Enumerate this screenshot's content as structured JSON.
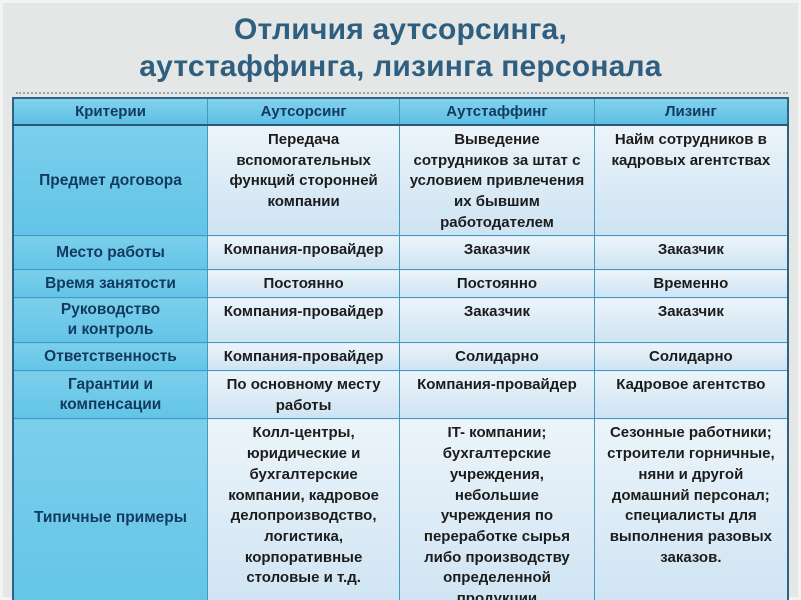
{
  "title": {
    "line1": "Отличия аутсорсинга,",
    "line2": "аутстаффинга, лизинга персонала"
  },
  "table": {
    "headers": [
      "Критерии",
      "Аутсорсинг",
      "Аутстаффинг",
      "Лизинг"
    ],
    "rows": [
      {
        "criterion": "Предмет договора",
        "outsourcing": "Передача вспомогательных функций сторонней компании",
        "outstaffing": "Выведение сотрудников за штат с условием привлечения их бывшим работодателем",
        "leasing": "Найм сотрудников в кадровых агентствах"
      },
      {
        "criterion": "Место работы",
        "outsourcing": "Компания-провайдер",
        "outstaffing": "Заказчик",
        "leasing": "Заказчик"
      },
      {
        "criterion": "Время занятости",
        "outsourcing": "Постоянно",
        "outstaffing": "Постоянно",
        "leasing": "Временно"
      },
      {
        "criterion": "Руководство\nи контроль",
        "outsourcing": "Компания-провайдер",
        "outstaffing": "Заказчик",
        "leasing": "Заказчик"
      },
      {
        "criterion": "Ответственность",
        "outsourcing": "Компания-провайдер",
        "outstaffing": "Солидарно",
        "leasing": "Солидарно"
      },
      {
        "criterion": "Гарантии и\nкомпенсации",
        "outsourcing": "По основному месту работы",
        "outstaffing": "Компания-провайдер",
        "leasing": "Кадровое агентство"
      },
      {
        "criterion": "Типичные примеры",
        "outsourcing": "Колл-центры, юридические и бухгалтерские компании, кадровое делопроизводство, логистика, корпоративные столовые и т.д.",
        "outstaffing": "IT- компании; бухгалтерские учреждения, небольшие учреждения по переработке сырья либо производству определенной продукции",
        "leasing": "Сезонные работники; строители горничные, няни и другой домашний персонал; специалисты для выполнения разовых заказов."
      }
    ]
  },
  "colors": {
    "slide_background": "#e5e7e6",
    "title_text": "#2e5f80",
    "header_cell_bg": "#66c5e6",
    "criteria_cell_bg": "#6fc9e8",
    "data_cell_bg": "#d9eaf6",
    "cell_border": "#4399c6",
    "outer_border": "#2e6384",
    "header_text": "#123a5e",
    "data_text": "#1c1c1c"
  }
}
